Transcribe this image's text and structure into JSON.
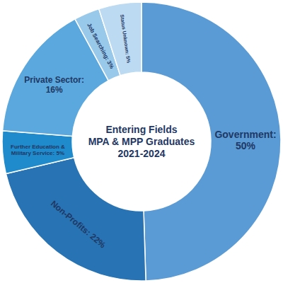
{
  "chart_data": {
    "type": "donut",
    "title": [
      "Entering Fields",
      "MPA & MPP Graduates",
      "2021-2024"
    ],
    "categories": [
      "Government",
      "Non-Profits",
      "Further Education & Military Service",
      "Private Sector",
      "Job Searching",
      "Status Unknown"
    ],
    "values": [
      50,
      22,
      5,
      16,
      3,
      5
    ],
    "value_labels": [
      [
        "Government:",
        "50%"
      ],
      [
        "Non-Profits: 22%"
      ],
      [
        "Further Education &",
        "Military Service: 5%"
      ],
      [
        "Private Sector:",
        "16%"
      ],
      [
        "Job Searching: 3%"
      ],
      [
        "Status Unknown: 5%"
      ]
    ],
    "colors": [
      "#5b9bd5",
      "#2873b3",
      "#1f8bcc",
      "#5aa8dd",
      "#98c8ea",
      "#bcdaf1"
    ],
    "data_labels": true
  }
}
